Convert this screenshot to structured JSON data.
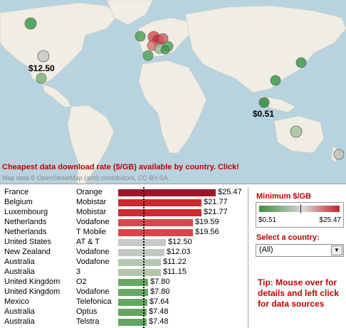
{
  "map": {
    "title": "Cheapest data download rate ($/GB) available by country. Click!",
    "credit": "Map data © OpenStreetMap (and) contributors, CC-BY-SA.",
    "labels": {
      "us": "$12.50",
      "asia": "$0.51"
    }
  },
  "legend": {
    "title": "Minimum $/GB",
    "min": "$0.51",
    "max": "$25.47"
  },
  "select": {
    "label": "Select a country:",
    "value": "(All)"
  },
  "tip": "Tip: Mouse over for details and left click for data sources",
  "table": {
    "rows": [
      {
        "country": "France",
        "operator": "Orange",
        "value": 25.47,
        "label": "$25.47",
        "color": "#a0142a"
      },
      {
        "country": "Belgium",
        "operator": "Mobistar",
        "value": 21.77,
        "label": "$21.77",
        "color": "#cc2a2f"
      },
      {
        "country": "Luxembourg",
        "operator": "Mobistar",
        "value": 21.77,
        "label": "$21.77",
        "color": "#cc2a2f"
      },
      {
        "country": "Netherlands",
        "operator": "Vodafone",
        "value": 19.59,
        "label": "$19.59",
        "color": "#d9454a"
      },
      {
        "country": "Netherlands",
        "operator": "T Mobile",
        "value": 19.56,
        "label": "$19.56",
        "color": "#d9454a"
      },
      {
        "country": "United States",
        "operator": "AT & T",
        "value": 12.5,
        "label": "$12.50",
        "color": "#c8c9c6"
      },
      {
        "country": "New Zealand",
        "operator": "Vodafone",
        "value": 12.03,
        "label": "$12.03",
        "color": "#c2c7bf"
      },
      {
        "country": "Australia",
        "operator": "Vodafone",
        "value": 11.22,
        "label": "$11.22",
        "color": "#b5c7ad"
      },
      {
        "country": "Australia",
        "operator": "3",
        "value": 11.15,
        "label": "$11.15",
        "color": "#b3c6aa"
      },
      {
        "country": "United Kingdom",
        "operator": "O2",
        "value": 7.8,
        "label": "$7.80",
        "color": "#68a865"
      },
      {
        "country": "United Kingdom",
        "operator": "Vodafone",
        "value": 7.8,
        "label": "$7.80",
        "color": "#68a865"
      },
      {
        "country": "Mexico",
        "operator": "Telefonica",
        "value": 7.64,
        "label": "$7.64",
        "color": "#66a663"
      },
      {
        "country": "Australia",
        "operator": "Optus",
        "value": 7.48,
        "label": "$7.48",
        "color": "#63a560"
      },
      {
        "country": "Australia",
        "operator": "Telstra",
        "value": 7.48,
        "label": "$7.48",
        "color": "#63a560"
      }
    ]
  }
}
